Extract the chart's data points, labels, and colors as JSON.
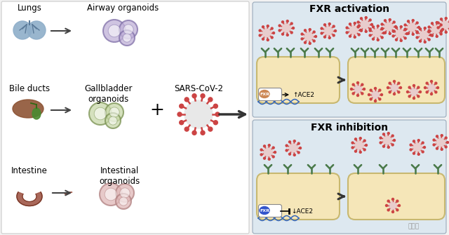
{
  "bg_color": "#f2f2f2",
  "left_bg": "#ffffff",
  "right_top_bg": "#dde8f0",
  "right_bot_bg": "#dde8f0",
  "cell_color": "#f5e6b8",
  "cell_edge": "#c8b870",
  "title_activation": "FXR activation",
  "title_inhibition": "FXR inhibition",
  "label_lungs": "Lungs",
  "label_bile": "Bile ducts",
  "label_intestine": "Intestine",
  "label_airway": "Airway organoids",
  "label_gallbladder": "Gallbladder\norganoids",
  "label_intestinal": "Intestinal\norganoids",
  "label_sars": "SARS-CoV-2",
  "label_ace2_up": "↑ACE2",
  "label_ace2_down": "↓ACE2",
  "lung_color": "#8eaec9",
  "liver_brown": "#8B5030",
  "liver_green": "#4a8a30",
  "intestine_color": "#a05848",
  "airway_ring": "#c0b0d8",
  "airway_edge": "#8070a8",
  "gallbladder_ring": "#c8d8a8",
  "gallbladder_edge": "#789050",
  "intestinal_ring": "#e0b8b8",
  "intestinal_edge": "#b08080",
  "virus_center": "#e8e8e8",
  "virus_spike": "#cc4444",
  "receptor_color": "#4a7a4a",
  "fxr_act_color": "#cc8855",
  "fxr_inh_color": "#3355cc",
  "dna_color": "#3366bb",
  "arrow_color": "#444444",
  "watermark": "量子位"
}
